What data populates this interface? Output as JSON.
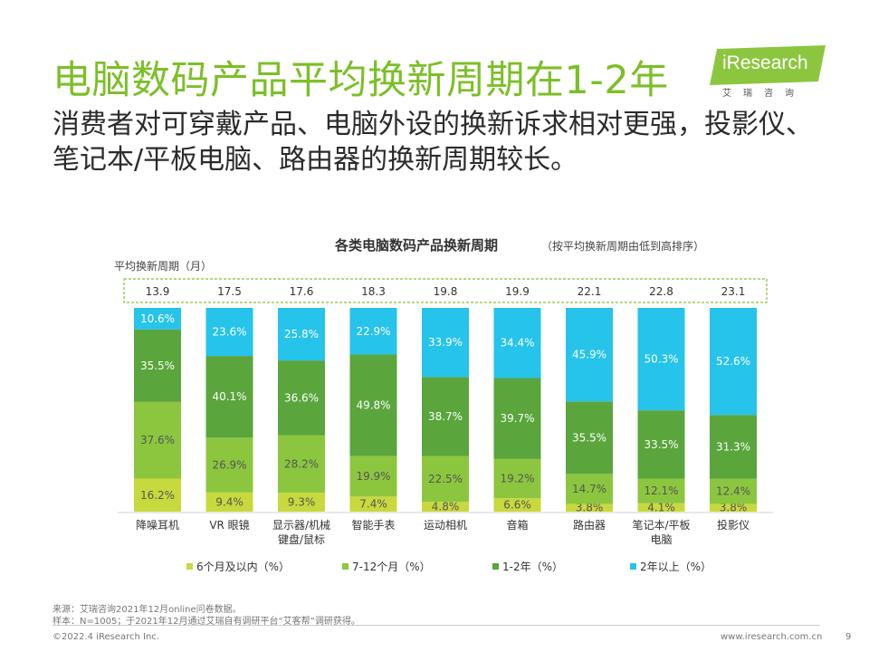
{
  "page": {
    "title": "电脑数码产品平均换新周期在1-2年",
    "subtitle": "消费者对可穿戴产品、电脑外设的换新诉求相对更强，投影仪、笔记本/平板电脑、路由器的换新周期较长。",
    "logo_name": "iResearch",
    "logo_sub": "艾瑞咨询",
    "source_note": "来源：艾瑞咨询2021年12月online问卷数据。",
    "sample_note": "样本：N=1005；于2021年12月通过艾瑞自有调研平台“艾客帮”调研获得。",
    "copyright": "©2022.4 iResearch Inc.",
    "website": "www.iresearch.com.cn",
    "page_number": "9"
  },
  "colors": {
    "title_green": "#7cbf28",
    "logo_green": "#8cc63f",
    "row_border": "#9ccc5a"
  },
  "chart_data": {
    "type": "bar",
    "stacked": true,
    "normalized": true,
    "title": "各类电脑数码产品换新周期",
    "subtitle": "（按平均换新周期由低到高排序）",
    "avg_label": "平均换新周期（月）",
    "categories": [
      "降噪耳机",
      "VR 眼镜",
      "显示器/机械\n键盘/鼠标",
      "智能手表",
      "运动相机",
      "音箱",
      "路由器",
      "笔记本/平板\n电脑",
      "投影仪"
    ],
    "averages": [
      "13.9",
      "17.5",
      "17.6",
      "18.3",
      "19.8",
      "19.9",
      "22.1",
      "22.8",
      "23.1"
    ],
    "series": [
      {
        "name": "6个月及以内（%）",
        "color": "#c8d93e",
        "values": [
          16.2,
          9.4,
          9.3,
          7.4,
          4.8,
          6.6,
          3.8,
          4.1,
          3.8
        ]
      },
      {
        "name": "7-12个月（%）",
        "color": "#8cc63f",
        "values": [
          37.6,
          26.9,
          28.2,
          19.9,
          22.5,
          19.2,
          14.7,
          12.1,
          12.4
        ]
      },
      {
        "name": "1-2年（%）",
        "color": "#5aa53c",
        "values": [
          35.5,
          40.1,
          36.6,
          49.8,
          38.7,
          39.7,
          35.5,
          33.5,
          31.3
        ]
      },
      {
        "name": "2年以上（%）",
        "color": "#26c3ea",
        "values": [
          10.6,
          23.6,
          25.8,
          22.9,
          33.9,
          34.4,
          45.9,
          50.3,
          52.6
        ]
      }
    ],
    "ylim": [
      0,
      100
    ],
    "legend_position": "bottom",
    "grid": false
  }
}
